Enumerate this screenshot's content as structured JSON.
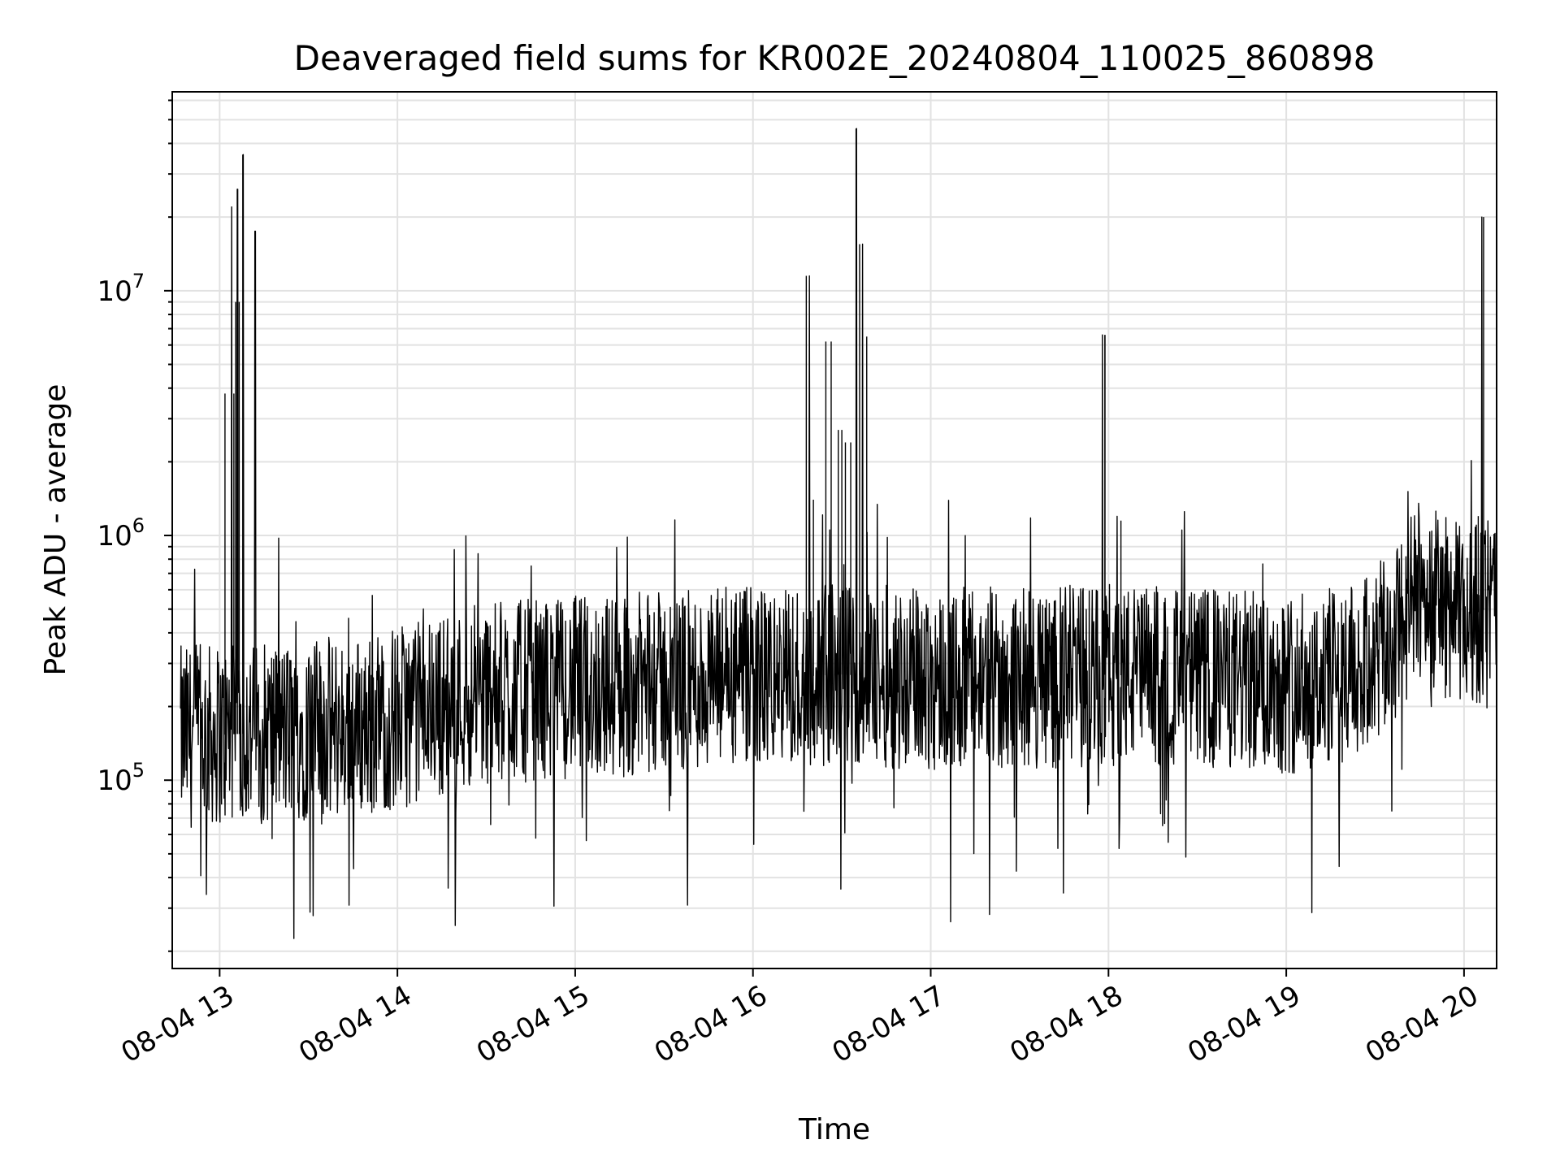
{
  "chart_data": {
    "type": "line",
    "title": "Deaveraged field sums for KR002E_20240804_110025_860898",
    "xlabel": "Time",
    "ylabel": "Peak ADU - average",
    "yscale": "log",
    "ylim": [
      17000,
      65000000
    ],
    "xlim": [
      "08-04 12:44",
      "08-04 20:11"
    ],
    "grid": true,
    "x_ticks": [
      "08-04 13",
      "08-04 14",
      "08-04 15",
      "08-04 16",
      "08-04 17",
      "08-04 18",
      "08-04 19",
      "08-04 20"
    ],
    "y_ticks": [
      {
        "value": 100000,
        "base": "10",
        "exp": "5"
      },
      {
        "value": 1000000,
        "base": "10",
        "exp": "6"
      },
      {
        "value": 10000000,
        "base": "10",
        "exp": "7"
      }
    ],
    "line_color": "#000000",
    "series": [
      {
        "x_hours": [
          12.78,
          13.0,
          13.08,
          13.1,
          13.11,
          13.13,
          13.2,
          13.5,
          13.9,
          14.3,
          14.6,
          14.9,
          15.2,
          15.5,
          15.8,
          16.0,
          16.3,
          16.4,
          16.44,
          16.5,
          16.55,
          16.58,
          16.6,
          16.64,
          16.9,
          17.2,
          17.5,
          17.8,
          17.98,
          18.1,
          18.5,
          18.8,
          19.1,
          19.5,
          19.7,
          19.86,
          20.0,
          20.11,
          20.18
        ],
        "y": [
          95000,
          180000,
          3800000,
          22000000,
          9000000,
          36000000,
          110000,
          170000,
          160000,
          210000,
          250000,
          240000,
          260000,
          250000,
          270000,
          260000,
          11500000,
          300000,
          6200000,
          2700000,
          2400000,
          46000000,
          15500000,
          270000,
          260000,
          250000,
          260000,
          270000,
          6600000,
          280000,
          260000,
          250000,
          250000,
          300000,
          600000,
          450000,
          440000,
          20000000,
          550000
        ]
      }
    ],
    "key_spikes": [
      {
        "t": "08-04 13:04",
        "value": 22000000
      },
      {
        "t": "08-04 13:06",
        "value": 26000000
      },
      {
        "t": "08-04 13:08",
        "value": 36000000
      },
      {
        "t": "08-04 13:12",
        "value": 17500000
      },
      {
        "t": "08-04 16:19",
        "value": 11500000
      },
      {
        "t": "08-04 16:35",
        "value": 46000000
      },
      {
        "t": "08-04 16:37",
        "value": 15500000
      },
      {
        "t": "08-04 17:58",
        "value": 6600000
      },
      {
        "t": "08-04 20:06",
        "value": 20000000
      }
    ]
  }
}
